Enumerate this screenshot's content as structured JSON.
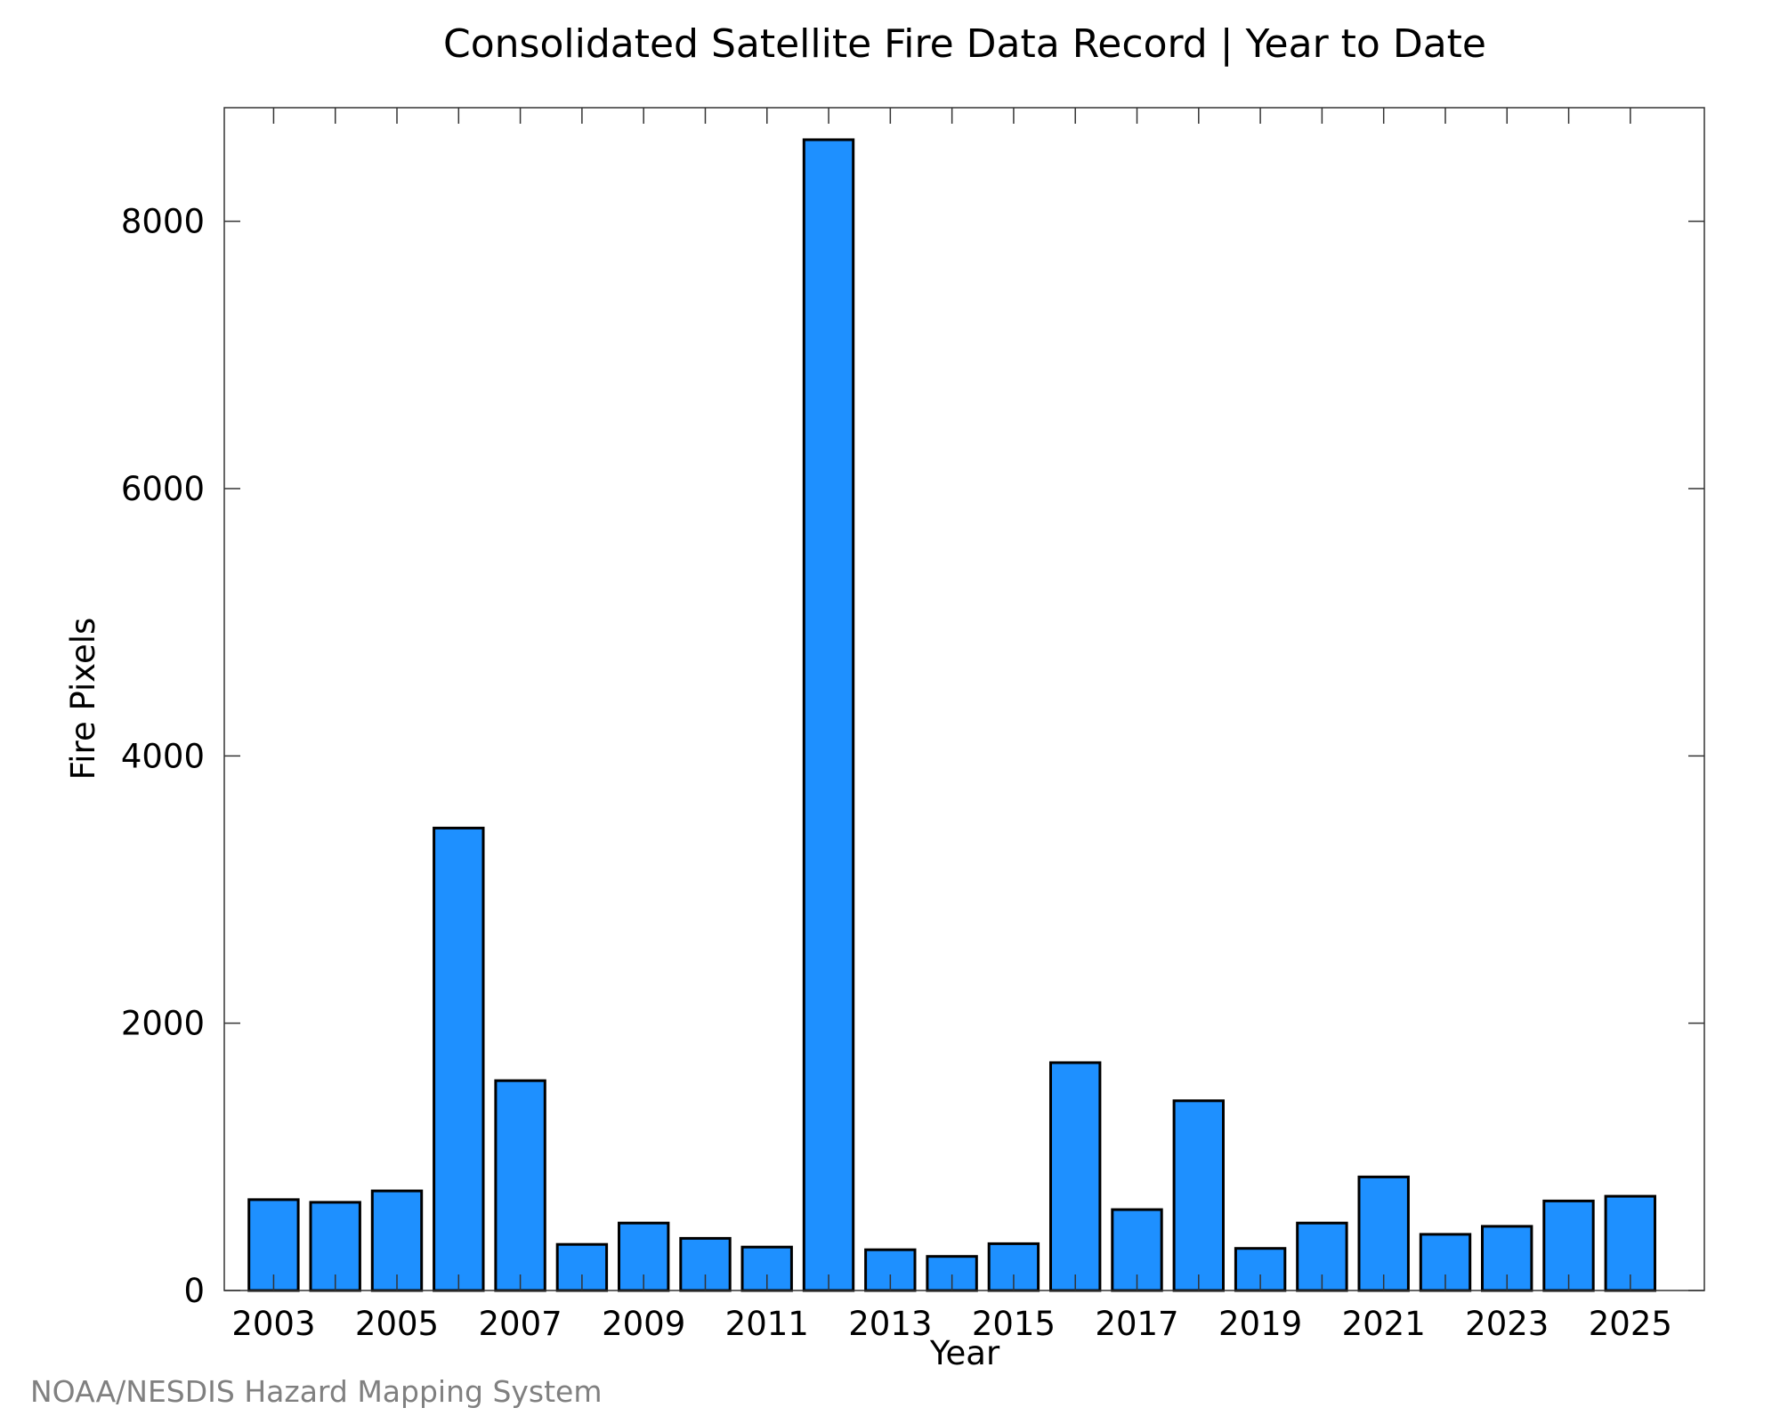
{
  "chart_data": {
    "type": "bar",
    "title": "Consolidated Satellite Fire Data Record | Year to Date",
    "xlabel": "Year",
    "ylabel": "Fire Pixels",
    "categories": [
      2003,
      2004,
      2005,
      2006,
      2007,
      2008,
      2009,
      2010,
      2011,
      2012,
      2013,
      2014,
      2015,
      2016,
      2017,
      2018,
      2019,
      2020,
      2021,
      2022,
      2023,
      2024,
      2025
    ],
    "values": [
      680,
      660,
      745,
      3460,
      1570,
      345,
      505,
      390,
      325,
      8610,
      305,
      255,
      350,
      1705,
      605,
      1420,
      315,
      505,
      850,
      420,
      480,
      670,
      705
    ],
    "ylim": [
      0,
      8850
    ],
    "xlim": [
      2002.2,
      2026.2
    ],
    "yticks": [
      0,
      2000,
      4000,
      6000,
      8000
    ],
    "xticks": [
      2003,
      2005,
      2007,
      2009,
      2011,
      2013,
      2015,
      2017,
      2019,
      2021,
      2023,
      2025
    ],
    "xminor_ticks": [
      2004,
      2006,
      2008,
      2010,
      2012,
      2014,
      2016,
      2018,
      2020,
      2022,
      2024
    ],
    "bar_color": "#1E90FF",
    "grid": false,
    "legend": "none"
  },
  "credit": "NOAA/NESDIS Hazard Mapping System"
}
